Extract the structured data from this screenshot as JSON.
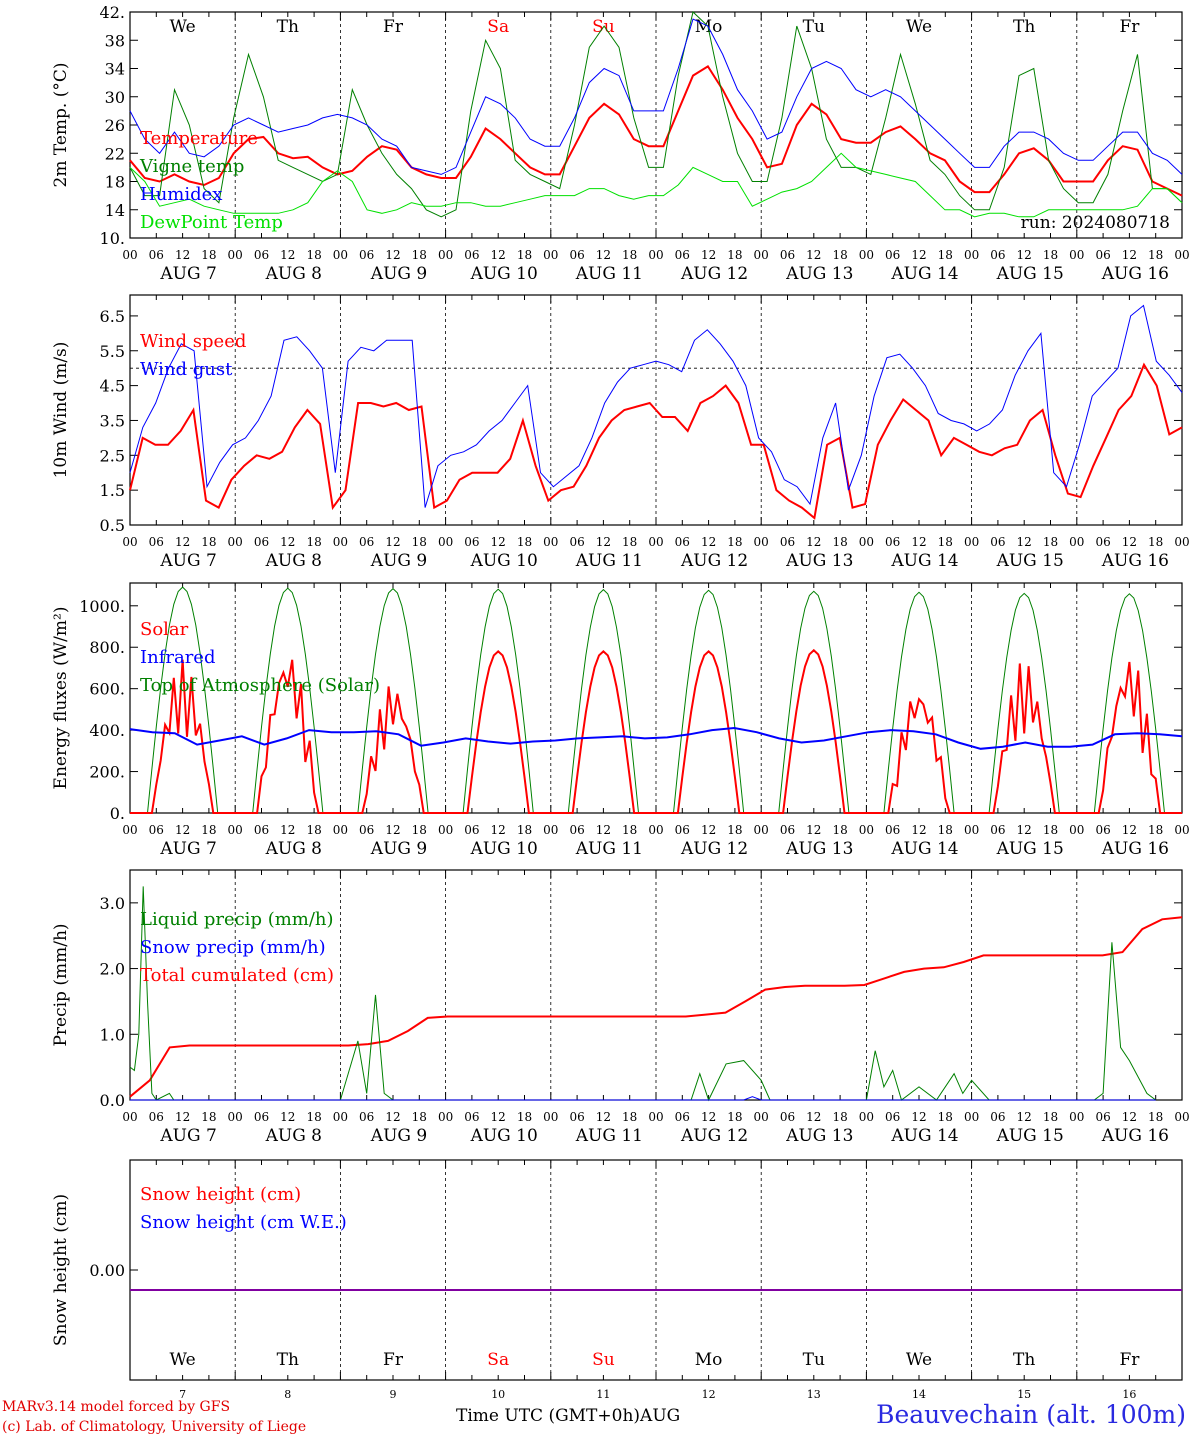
{
  "chart_data": [
    {
      "type": "line",
      "ylabel": "2m Temp. (°C)",
      "ylim": [
        10,
        42
      ],
      "yticks": [
        "10.",
        "14",
        "18",
        "22",
        "26",
        "30",
        "34",
        "38",
        "42."
      ],
      "legend": [
        {
          "name": "Temperature",
          "color": "#ff0000"
        },
        {
          "name": "Vigne temp",
          "color": "#008000"
        },
        {
          "name": "Humidex",
          "color": "#0000ff"
        },
        {
          "name": "DewPoint Temp",
          "color": "#00e000"
        }
      ],
      "annotation": "run: 2024080718",
      "day_labels": [
        "We",
        "Th",
        "Fr",
        "Sa",
        "Su",
        "Mo",
        "Tu",
        "We",
        "Th",
        "Fr"
      ],
      "weekend_color": "#ff0000",
      "series": [
        {
          "name": "Temperature",
          "color": "#ff0000",
          "width": 2,
          "values": [
            21,
            18.5,
            18,
            19,
            18,
            17.5,
            18.5,
            22,
            24,
            24.3,
            22,
            21.3,
            21.5,
            20,
            19,
            19.5,
            21.5,
            23,
            22.5,
            20,
            19,
            18.5,
            18.5,
            21.5,
            25.5,
            24,
            22,
            20,
            19,
            19,
            23,
            27,
            29,
            27.5,
            24,
            23,
            23,
            28,
            33,
            34.3,
            31,
            27,
            24,
            20,
            20.5,
            26,
            29,
            27.5,
            24,
            23.5,
            23.5,
            25,
            25.8,
            24,
            22,
            21,
            18,
            16.5,
            16.5,
            19,
            22,
            22.7,
            21,
            18,
            18,
            18,
            21,
            23,
            22.5,
            18,
            17,
            16
          ]
        },
        {
          "name": "Vigne temp",
          "color": "#008000",
          "width": 1,
          "values": [
            20,
            16,
            16,
            31,
            26,
            17,
            15,
            27,
            36,
            30,
            21,
            20,
            19,
            18,
            19,
            31,
            26,
            22,
            19,
            17,
            14,
            13,
            14,
            28,
            38,
            34,
            21,
            19,
            18,
            17,
            26,
            37,
            40,
            37,
            27,
            20,
            20,
            33,
            42,
            40,
            30,
            22,
            18,
            18,
            27,
            40,
            34,
            24,
            20,
            20,
            19,
            27,
            36,
            29,
            21,
            19,
            16,
            14,
            14,
            20,
            33,
            34,
            21,
            17,
            15,
            15,
            19,
            28,
            36,
            17,
            17,
            15
          ]
        },
        {
          "name": "Humidex",
          "color": "#0000ff",
          "width": 1,
          "values": [
            28,
            24,
            22,
            25,
            22,
            21.5,
            23,
            26,
            27,
            26,
            25,
            25.5,
            26,
            27,
            27.5,
            27,
            26,
            24,
            23,
            20,
            19.5,
            19,
            20,
            25,
            30,
            29,
            27,
            24,
            23,
            23,
            27,
            32,
            34,
            33,
            28,
            28,
            28,
            34,
            41,
            40,
            36,
            31,
            28,
            24,
            25,
            30,
            34,
            35,
            34,
            31,
            30,
            31,
            30,
            28,
            26,
            24,
            22,
            20,
            20,
            23,
            25,
            25,
            24,
            22,
            21,
            21,
            23,
            25,
            25,
            22,
            21,
            19
          ]
        },
        {
          "name": "DewPoint Temp",
          "color": "#00e000",
          "width": 1,
          "values": [
            20,
            18,
            14.5,
            15,
            15.5,
            14.5,
            14,
            13.5,
            13.5,
            13.5,
            13.5,
            14,
            15,
            18,
            19.5,
            18,
            14,
            13.5,
            14,
            15,
            14.5,
            14.5,
            15,
            15,
            14.5,
            14.5,
            15,
            15.5,
            16,
            16,
            16,
            17,
            17,
            16,
            15.5,
            16,
            16,
            17.5,
            20,
            19,
            18,
            18,
            14.5,
            15.5,
            16.5,
            17,
            18,
            20,
            22,
            20,
            19.5,
            19,
            18.5,
            18,
            16,
            14,
            14,
            13,
            13.5,
            13.5,
            13,
            13,
            14,
            14,
            14,
            14,
            14,
            14,
            14.5,
            17,
            17,
            15
          ]
        }
      ]
    },
    {
      "type": "line",
      "ylabel": "10m Wind (m/s)",
      "ylim": [
        0.5,
        7.1
      ],
      "yticks": [
        "0.5",
        "1.5",
        "2.5",
        "3.5",
        "4.5",
        "5.5",
        "6.5"
      ],
      "reference_line": 5.0,
      "legend": [
        {
          "name": "Wind speed",
          "color": "#ff0000"
        },
        {
          "name": "Wind gust",
          "color": "#0000ff"
        }
      ],
      "series": [
        {
          "name": "Wind speed",
          "color": "#ff0000",
          "width": 2,
          "values": [
            1.5,
            3,
            2.8,
            2.8,
            3.2,
            3.8,
            1.2,
            1,
            1.8,
            2.2,
            2.5,
            2.4,
            2.6,
            3.3,
            3.8,
            3.4,
            1,
            1.5,
            4,
            4,
            3.9,
            4,
            3.8,
            3.9,
            1,
            1.2,
            1.8,
            2,
            2,
            2,
            2.4,
            3.5,
            2.2,
            1.2,
            1.5,
            1.6,
            2.2,
            3,
            3.5,
            3.8,
            3.9,
            4,
            3.6,
            3.6,
            3.2,
            4,
            4.2,
            4.5,
            4,
            2.8,
            2.8,
            1.5,
            1.2,
            1,
            0.7,
            2.8,
            3,
            1,
            1.1,
            2.8,
            3.5,
            4.1,
            3.8,
            3.5,
            2.5,
            3,
            2.8,
            2.6,
            2.5,
            2.7,
            2.8,
            3.5,
            3.8,
            2.5,
            1.4,
            1.3,
            2.2,
            3,
            3.8,
            4.2,
            5.1,
            4.5,
            3.1,
            3.3
          ]
        },
        {
          "name": "Wind gust",
          "color": "#0000ff",
          "width": 1,
          "values": [
            2,
            3.3,
            4,
            5,
            5.7,
            5.5,
            1.6,
            2.3,
            2.8,
            3,
            3.5,
            4.2,
            5.8,
            5.9,
            5.5,
            5,
            2,
            5.2,
            5.6,
            5.5,
            5.8,
            5.8,
            5.8,
            1,
            2.2,
            2.5,
            2.6,
            2.8,
            3.2,
            3.5,
            4,
            4.5,
            2,
            1.6,
            1.9,
            2.2,
            3,
            4,
            4.6,
            5,
            5.1,
            5.2,
            5.1,
            4.9,
            5.8,
            6.1,
            5.7,
            5.2,
            4.5,
            3,
            2.6,
            1.8,
            1.6,
            1.1,
            3,
            4,
            1.5,
            2.5,
            4.2,
            5.3,
            5.4,
            5,
            4.5,
            3.7,
            3.5,
            3.4,
            3.2,
            3.4,
            3.8,
            4.8,
            5.5,
            6,
            2,
            1.6,
            2.8,
            4.2,
            4.6,
            5,
            6.5,
            6.8,
            5.2,
            4.8,
            4.3
          ]
        }
      ]
    },
    {
      "type": "line",
      "ylabel": "Energy fluxes (W/m²)",
      "ylim": [
        0,
        1110
      ],
      "yticks": [
        "0.",
        "200.",
        "400.",
        "600.",
        "800.",
        "1000."
      ],
      "legend": [
        {
          "name": "Solar",
          "color": "#ff0000"
        },
        {
          "name": "Infrared",
          "color": "#0000ff"
        },
        {
          "name": "Top of Atmosphere (Solar)",
          "color": "#008000"
        }
      ],
      "series": [
        {
          "name": "Top of Atmosphere (Solar)",
          "color": "#008000",
          "width": 1,
          "diurnal_peaks": [
            1090,
            1085,
            1083,
            1080,
            1078,
            1075,
            1070,
            1065,
            1060,
            1058
          ]
        },
        {
          "name": "Solar",
          "color": "#ff0000",
          "width": 2,
          "diurnal_peaks": [
            740,
            805,
            640,
            780,
            780,
            780,
            785,
            630,
            740,
            770
          ]
        },
        {
          "name": "Infrared",
          "color": "#0000ff",
          "width": 2,
          "values": [
            405,
            390,
            385,
            330,
            350,
            370,
            330,
            360,
            400,
            390,
            390,
            395,
            380,
            325,
            340,
            360,
            345,
            335,
            345,
            350,
            360,
            365,
            370,
            360,
            365,
            380,
            400,
            410,
            390,
            360,
            340,
            350,
            370,
            390,
            400,
            395,
            380,
            340,
            310,
            320,
            340,
            320,
            320,
            330,
            380,
            385,
            380,
            370
          ]
        }
      ]
    },
    {
      "type": "line",
      "ylabel": "Precip (mm/h)",
      "ylim": [
        0,
        3.5
      ],
      "yticks": [
        "0.0",
        "1.0",
        "2.0",
        "3.0"
      ],
      "legend": [
        {
          "name": "Liquid precip (mm/h)",
          "color": "#008000"
        },
        {
          "name": "Snow precip (mm/h)",
          "color": "#0000ff"
        },
        {
          "name": "Total cumulated (cm)",
          "color": "#ff0000"
        }
      ],
      "series": [
        {
          "name": "Total cumulated (cm)",
          "color": "#ff0000",
          "width": 2,
          "values": [
            0.05,
            0.3,
            0.8,
            0.83,
            0.83,
            0.83,
            0.83,
            0.83,
            0.83,
            0.83,
            0.83,
            0.83,
            0.85,
            0.9,
            1.05,
            1.25,
            1.27,
            1.27,
            1.27,
            1.27,
            1.27,
            1.27,
            1.27,
            1.27,
            1.27,
            1.27,
            1.27,
            1.27,
            1.27,
            1.3,
            1.33,
            1.5,
            1.68,
            1.72,
            1.74,
            1.74,
            1.74,
            1.75,
            1.85,
            1.95,
            2.0,
            2.02,
            2.1,
            2.2,
            2.2,
            2.2,
            2.2,
            2.2,
            2.2,
            2.2,
            2.25,
            2.6,
            2.75,
            2.78
          ]
        },
        {
          "name": "Liquid precip (mm/h)",
          "color": "#008000",
          "width": 1,
          "points": [
            [
              0,
              0.5
            ],
            [
              1,
              0.45
            ],
            [
              2,
              1.0
            ],
            [
              3,
              3.25
            ],
            [
              4,
              1.5
            ],
            [
              5,
              0.1
            ],
            [
              6,
              0.0
            ],
            [
              9,
              0.1
            ],
            [
              10,
              0
            ],
            [
              48,
              0
            ],
            [
              52,
              0.9
            ],
            [
              54,
              0.1
            ],
            [
              56,
              1.6
            ],
            [
              58,
              0.1
            ],
            [
              60,
              0
            ],
            [
              128,
              0
            ],
            [
              130,
              0.4
            ],
            [
              132,
              0
            ],
            [
              136,
              0.55
            ],
            [
              140,
              0.6
            ],
            [
              144,
              0.3
            ],
            [
              146,
              0
            ],
            [
              168,
              0
            ],
            [
              170,
              0.75
            ],
            [
              172,
              0.2
            ],
            [
              174,
              0.45
            ],
            [
              176,
              0
            ],
            [
              180,
              0.2
            ],
            [
              184,
              0
            ],
            [
              188,
              0.4
            ],
            [
              190,
              0.1
            ],
            [
              192,
              0.3
            ],
            [
              196,
              0
            ],
            [
              220,
              0
            ],
            [
              222,
              0.1
            ],
            [
              224,
              2.4
            ],
            [
              226,
              0.8
            ],
            [
              228,
              0.6
            ],
            [
              232,
              0.1
            ],
            [
              234,
              0
            ]
          ]
        },
        {
          "name": "Snow precip (mm/h)",
          "color": "#0000ff",
          "width": 1,
          "points": [
            [
              0,
              0
            ],
            [
              140,
              0
            ],
            [
              142,
              0.05
            ],
            [
              144,
              0
            ],
            [
              234,
              0
            ]
          ]
        }
      ]
    },
    {
      "type": "line",
      "ylabel": "Snow height (cm)",
      "yticks": [
        "0.00"
      ],
      "legend": [
        {
          "name": "Snow height (cm)",
          "color": "#ff0000"
        },
        {
          "name": "Snow height (cm W.E.)",
          "color": "#0000ff"
        }
      ],
      "series": [
        {
          "name": "Snow height",
          "color": "#8000a0",
          "width": 2,
          "values": [
            0,
            0
          ]
        }
      ],
      "day_labels": [
        "We",
        "Th",
        "Fr",
        "Sa",
        "Su",
        "Mo",
        "Tu",
        "We",
        "Th",
        "Fr"
      ],
      "day_numbers": [
        "7",
        "8",
        "9",
        "10",
        "11",
        "12",
        "13",
        "14",
        "15",
        "16"
      ]
    }
  ],
  "x_axis": {
    "hour_ticks": [
      "00",
      "06",
      "12",
      "18"
    ],
    "dates": [
      "AUG  7",
      "AUG  8",
      "AUG  9",
      "AUG 10",
      "AUG 11",
      "AUG 12",
      "AUG 13",
      "AUG 14",
      "AUG 15",
      "AUG 16"
    ],
    "end_tick": "00",
    "xlabel": "Time UTC (GMT+0h)",
    "month": "AUG"
  },
  "footer": {
    "model": "MARv3.14 model forced by GFS",
    "credit": "(c) Lab. of Climatology, University of Liege",
    "station": "Beauvechain (alt. 100m)"
  }
}
